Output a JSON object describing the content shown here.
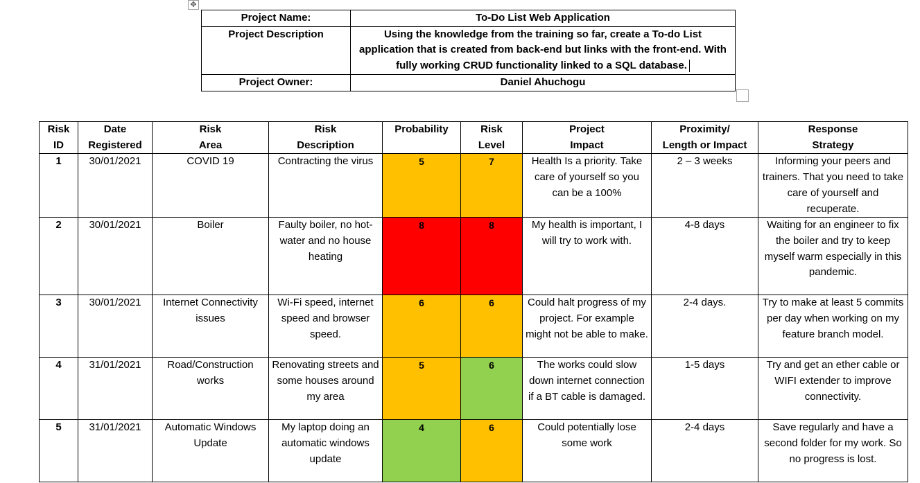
{
  "project": {
    "name_label": "Project Name:",
    "name_value": "To-Do List Web Application",
    "description_label": "Project Description",
    "description_value": "Using the knowledge from the training so far, create a To-do List application that is created from back-end but links with the front-end. With fully working CRUD functionality linked to a SQL database.",
    "owner_label": "Project Owner:",
    "owner_value": "Daniel Ahuchogu"
  },
  "risk_table": {
    "headers": [
      {
        "line1": "Risk",
        "line2": "ID"
      },
      {
        "line1": "Date",
        "line2": "Registered"
      },
      {
        "line1": "Risk",
        "line2": "Area"
      },
      {
        "line1": "Risk",
        "line2": "Description"
      },
      {
        "line1": "Probability",
        "line2": ""
      },
      {
        "line1": "Risk",
        "line2": "Level"
      },
      {
        "line1": "Project",
        "line2": "Impact"
      },
      {
        "line1": "Proximity/",
        "line2": "Length or Impact"
      },
      {
        "line1": "Response",
        "line2": "Strategy"
      }
    ],
    "rows": [
      {
        "id": "1",
        "date": "30/01/2021",
        "area": "COVID 19",
        "description": "Contracting the virus",
        "probability": "5",
        "probability_color": "#ffc000",
        "level": "7",
        "level_color": "#ffc000",
        "impact": "Health Is a priority. Take care of yourself so you can be a 100%",
        "proximity": "2 – 3 weeks",
        "strategy": "Informing your peers and trainers. That you need to take care of yourself and recuperate."
      },
      {
        "id": "2",
        "date": "30/01/2021",
        "area": "Boiler",
        "description": "Faulty boiler, no hot-water and no house heating",
        "probability": "8",
        "probability_color": "#ff0000",
        "level": "8",
        "level_color": "#ff0000",
        "impact": "My health is important, I will try to work with.",
        "proximity": "4-8 days",
        "strategy": "Waiting for an engineer to fix the boiler and try to keep myself warm especially in this pandemic."
      },
      {
        "id": "3",
        "date": "30/01/2021",
        "area": "Internet Connectivity issues",
        "description": "Wi-Fi speed, internet speed and browser speed.",
        "probability": "6",
        "probability_color": "#ffc000",
        "level": "6",
        "level_color": "#ffc000",
        "impact": "Could halt progress of my project. For example might not be able to make.",
        "proximity": "2-4 days.",
        "strategy": "Try to make at least 5 commits per day when working on my feature branch model."
      },
      {
        "id": "4",
        "date": "31/01/2021",
        "area": "Road/Construction works",
        "description": "Renovating streets and some houses around my area",
        "probability": "5",
        "probability_color": "#ffc000",
        "level": "6",
        "level_color": "#92d050",
        "impact": "The works could slow down internet connection if a BT cable is damaged.",
        "proximity": "1-5 days",
        "strategy": "Try and get an ether cable or WIFI extender to improve connectivity."
      },
      {
        "id": "5",
        "date": "31/01/2021",
        "area": "Automatic Windows Update",
        "description": "My laptop doing an automatic windows update",
        "probability": "4",
        "probability_color": "#92d050",
        "level": "6",
        "level_color": "#ffc000",
        "impact": "Could potentially lose some work",
        "proximity": "2-4 days",
        "strategy": "Save regularly and have a second folder for my work. So no progress is lost."
      }
    ]
  }
}
